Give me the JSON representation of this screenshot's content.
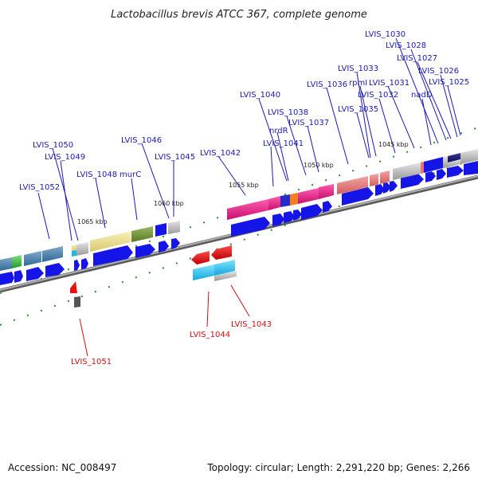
{
  "title": "Lactobacillus brevis ATCC 367, complete genome",
  "footer": {
    "accession": "Accession: NC_008497",
    "topology": "Topology: circular; Length: 2,291,220 bp; Genes: 2,266"
  },
  "kbp_ticks": [
    "1045 kbp",
    "1050 kbp",
    "1055 kbp",
    "1060 kbp",
    "1065 kbp"
  ],
  "forward_labels": [
    "LVIS_1030",
    "LVIS_1028",
    "LVIS_1027",
    "LVIS_1033",
    "LVIS_1026",
    "LVIS_1036",
    "rpmI",
    "LVIS_1031",
    "LVIS_1025",
    "LVIS_1032",
    "nadD",
    "LVIS_1040",
    "LVIS_1035",
    "LVIS_1038",
    "nrdR",
    "LVIS_1037",
    "LVIS_1046",
    "LVIS_1041",
    "LVIS_1050",
    "LVIS_1042",
    "LVIS_1049",
    "LVIS_1045",
    "LVIS_1048",
    "murC",
    "LVIS_1052"
  ],
  "reverse_labels": [
    "LVIS_1043",
    "LVIS_1044",
    "LVIS_1051"
  ],
  "colors": {
    "forward_label": "#1a1ab0",
    "reverse_label": "#cc1111",
    "cds_arrow": "#1515e8",
    "backbone": "#8a8a8a",
    "tick": "#2c8c2c"
  }
}
